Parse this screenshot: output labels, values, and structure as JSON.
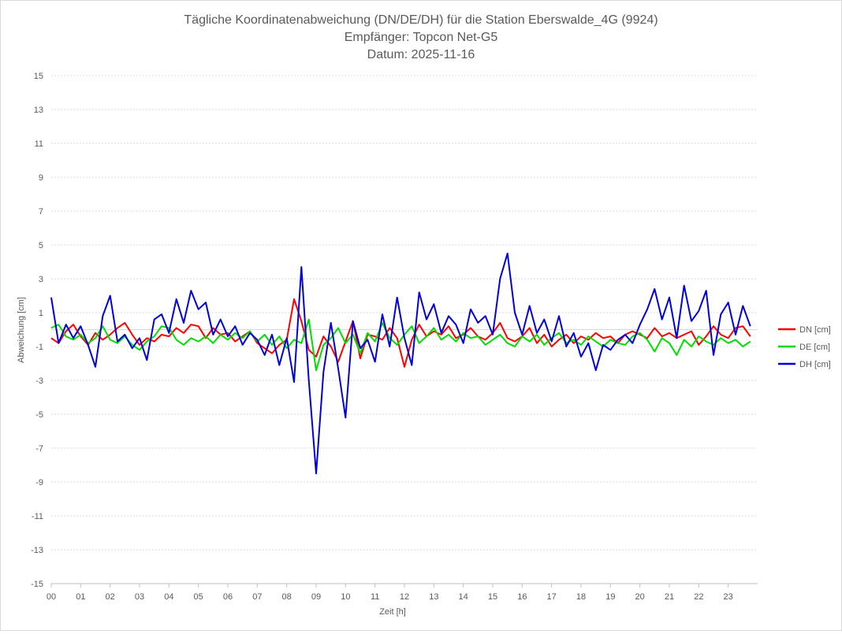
{
  "chart_data": {
    "type": "line",
    "title_lines": [
      "Tägliche Koordinatenabweichung (DN/DE/DH) für die Station Eberswalde_4G (9924)",
      "Empfänger: Topcon Net-G5",
      "Datum: 2025-11-16"
    ],
    "xlabel": "Zeit [h]",
    "ylabel": "Abweichung [cm]",
    "xlim": [
      0,
      24
    ],
    "ylim": [
      -15,
      15
    ],
    "x_ticks": [
      "00",
      "01",
      "02",
      "03",
      "04",
      "05",
      "06",
      "07",
      "08",
      "09",
      "10",
      "11",
      "12",
      "13",
      "14",
      "15",
      "16",
      "17",
      "18",
      "19",
      "20",
      "21",
      "22",
      "23"
    ],
    "y_ticks": [
      15,
      13,
      11,
      9,
      7,
      5,
      3,
      1,
      -1,
      -3,
      -5,
      -7,
      -9,
      -11,
      -13,
      -15
    ],
    "legend_position": "right",
    "grid": true,
    "series": [
      {
        "name": "DN [cm]",
        "color": "#ff0000",
        "x": [
          0.0,
          0.25,
          0.5,
          0.75,
          1.0,
          1.25,
          1.5,
          1.75,
          2.0,
          2.25,
          2.5,
          2.75,
          3.0,
          3.25,
          3.5,
          3.75,
          4.0,
          4.25,
          4.5,
          4.75,
          5.0,
          5.25,
          5.5,
          5.75,
          6.0,
          6.25,
          6.5,
          6.75,
          7.0,
          7.25,
          7.5,
          7.75,
          8.0,
          8.25,
          8.5,
          8.75,
          9.0,
          9.25,
          9.5,
          9.75,
          10.0,
          10.25,
          10.5,
          10.75,
          11.0,
          11.25,
          11.5,
          11.75,
          12.0,
          12.25,
          12.5,
          12.75,
          13.0,
          13.25,
          13.5,
          13.75,
          14.0,
          14.25,
          14.5,
          14.75,
          15.0,
          15.25,
          15.5,
          15.75,
          16.0,
          16.25,
          16.5,
          16.75,
          17.0,
          17.25,
          17.5,
          17.75,
          18.0,
          18.25,
          18.5,
          18.75,
          19.0,
          19.25,
          19.5,
          19.75,
          20.0,
          20.25,
          20.5,
          20.75,
          21.0,
          21.25,
          21.5,
          21.75,
          22.0,
          22.25,
          22.5,
          22.75,
          23.0,
          23.25,
          23.5,
          23.75
        ],
        "values": [
          -0.5,
          -0.8,
          -0.1,
          0.3,
          -0.4,
          -0.9,
          -0.2,
          -0.6,
          -0.3,
          0.1,
          0.4,
          -0.3,
          -0.9,
          -0.5,
          -0.7,
          -0.3,
          -0.4,
          0.1,
          -0.2,
          0.3,
          0.2,
          -0.5,
          0.1,
          -0.3,
          -0.2,
          -0.7,
          -0.4,
          -0.1,
          -0.8,
          -1.1,
          -1.4,
          -0.9,
          -0.6,
          1.8,
          0.5,
          -1.2,
          -1.6,
          -0.4,
          -1.0,
          -1.9,
          -0.7,
          0.5,
          -1.7,
          -0.3,
          -0.4,
          -0.6,
          0.1,
          -0.5,
          -2.2,
          -0.6,
          0.3,
          -0.4,
          -0.1,
          -0.3,
          0.2,
          -0.5,
          -0.3,
          0.1,
          -0.4,
          -0.6,
          -0.2,
          0.4,
          -0.5,
          -0.7,
          -0.4,
          0.1,
          -0.8,
          -0.3,
          -1.0,
          -0.6,
          -0.3,
          -0.8,
          -0.4,
          -0.6,
          -0.2,
          -0.5,
          -0.4,
          -0.8,
          -0.3,
          -0.1,
          -0.3,
          -0.5,
          0.1,
          -0.4,
          -0.2,
          -0.5,
          -0.3,
          -0.1,
          -0.9,
          -0.4,
          0.2,
          -0.3,
          -0.5,
          0.1,
          0.2,
          -0.4
        ]
      },
      {
        "name": "DE [cm]",
        "color": "#00dd00",
        "x": [
          0.0,
          0.25,
          0.5,
          0.75,
          1.0,
          1.25,
          1.5,
          1.75,
          2.0,
          2.25,
          2.5,
          2.75,
          3.0,
          3.25,
          3.5,
          3.75,
          4.0,
          4.25,
          4.5,
          4.75,
          5.0,
          5.25,
          5.5,
          5.75,
          6.0,
          6.25,
          6.5,
          6.75,
          7.0,
          7.25,
          7.5,
          7.75,
          8.0,
          8.25,
          8.5,
          8.75,
          9.0,
          9.25,
          9.5,
          9.75,
          10.0,
          10.25,
          10.5,
          10.75,
          11.0,
          11.25,
          11.5,
          11.75,
          12.0,
          12.25,
          12.5,
          12.75,
          13.0,
          13.25,
          13.5,
          13.75,
          14.0,
          14.25,
          14.5,
          14.75,
          15.0,
          15.25,
          15.5,
          15.75,
          16.0,
          16.25,
          16.5,
          16.75,
          17.0,
          17.25,
          17.5,
          17.75,
          18.0,
          18.25,
          18.5,
          18.75,
          19.0,
          19.25,
          19.5,
          19.75,
          20.0,
          20.25,
          20.5,
          20.75,
          21.0,
          21.25,
          21.5,
          21.75,
          22.0,
          22.25,
          22.5,
          22.75,
          23.0,
          23.25,
          23.5,
          23.75
        ],
        "values": [
          0.1,
          0.3,
          -0.4,
          -0.6,
          -0.3,
          -0.8,
          -0.5,
          0.2,
          -0.6,
          -0.8,
          -0.4,
          -0.9,
          -1.2,
          -0.7,
          -0.4,
          0.2,
          0.1,
          -0.6,
          -0.9,
          -0.5,
          -0.7,
          -0.4,
          -0.8,
          -0.3,
          -0.6,
          -0.2,
          -0.5,
          -0.1,
          -0.7,
          -0.3,
          -0.9,
          -0.4,
          -1.1,
          -0.6,
          -0.8,
          0.6,
          -2.4,
          -0.9,
          -0.5,
          0.1,
          -0.8,
          -0.3,
          -1.4,
          -0.2,
          -0.7,
          0.4,
          -0.5,
          -0.9,
          -0.3,
          0.2,
          -0.8,
          -0.4,
          0.1,
          -0.6,
          -0.3,
          -0.7,
          -0.2,
          -0.5,
          -0.4,
          -0.9,
          -0.6,
          -0.3,
          -0.8,
          -1.0,
          -0.4,
          -0.7,
          -0.3,
          -0.9,
          -0.5,
          -0.2,
          -0.8,
          -0.6,
          -0.9,
          -0.4,
          -0.7,
          -1.0,
          -0.6,
          -0.8,
          -0.9,
          -0.4,
          -0.2,
          -0.6,
          -1.3,
          -0.5,
          -0.8,
          -1.5,
          -0.6,
          -1.0,
          -0.4,
          -0.7,
          -0.9,
          -0.5,
          -0.8,
          -0.6,
          -1.0,
          -0.7
        ]
      },
      {
        "name": "DH [cm]",
        "color": "#0000dd",
        "x": [
          0.0,
          0.25,
          0.5,
          0.75,
          1.0,
          1.25,
          1.5,
          1.75,
          2.0,
          2.25,
          2.5,
          2.75,
          3.0,
          3.25,
          3.5,
          3.75,
          4.0,
          4.25,
          4.5,
          4.75,
          5.0,
          5.25,
          5.5,
          5.75,
          6.0,
          6.25,
          6.5,
          6.75,
          7.0,
          7.25,
          7.5,
          7.75,
          8.0,
          8.25,
          8.5,
          8.75,
          9.0,
          9.25,
          9.5,
          9.75,
          10.0,
          10.25,
          10.5,
          10.75,
          11.0,
          11.25,
          11.5,
          11.75,
          12.0,
          12.25,
          12.5,
          12.75,
          13.0,
          13.25,
          13.5,
          13.75,
          14.0,
          14.25,
          14.5,
          14.75,
          15.0,
          15.25,
          15.5,
          15.75,
          16.0,
          16.25,
          16.5,
          16.75,
          17.0,
          17.25,
          17.5,
          17.75,
          18.0,
          18.25,
          18.5,
          18.75,
          19.0,
          19.25,
          19.5,
          19.75,
          20.0,
          20.25,
          20.5,
          20.75,
          21.0,
          21.25,
          21.5,
          21.75,
          22.0,
          22.25,
          22.5,
          22.75,
          23.0,
          23.25,
          23.5,
          23.75
        ],
        "values": [
          1.9,
          -0.8,
          0.3,
          -0.5,
          0.2,
          -0.9,
          -2.2,
          0.8,
          2.0,
          -0.7,
          -0.3,
          -1.1,
          -0.5,
          -1.8,
          0.6,
          0.9,
          -0.2,
          1.8,
          0.4,
          2.3,
          1.2,
          1.6,
          -0.3,
          0.6,
          -0.4,
          0.2,
          -0.9,
          -0.2,
          -0.6,
          -1.5,
          -0.3,
          -2.1,
          -0.5,
          -3.1,
          3.7,
          -3.0,
          -8.5,
          -2.5,
          0.4,
          -2.3,
          -5.2,
          0.5,
          -1.1,
          -0.6,
          -1.9,
          0.9,
          -1.0,
          1.9,
          -0.5,
          -2.1,
          2.2,
          0.6,
          1.5,
          -0.2,
          0.8,
          0.3,
          -0.8,
          1.2,
          0.4,
          0.8,
          -0.3,
          3.0,
          4.5,
          1.0,
          -0.3,
          1.4,
          -0.2,
          0.6,
          -0.7,
          0.8,
          -1.0,
          -0.2,
          -1.6,
          -0.8,
          -2.4,
          -0.9,
          -1.2,
          -0.6,
          -0.3,
          -0.8,
          0.3,
          1.2,
          2.4,
          0.6,
          1.9,
          -0.5,
          2.6,
          0.5,
          1.1,
          2.3,
          -1.5,
          0.9,
          1.6,
          -0.3,
          1.4,
          0.2
        ]
      }
    ]
  }
}
